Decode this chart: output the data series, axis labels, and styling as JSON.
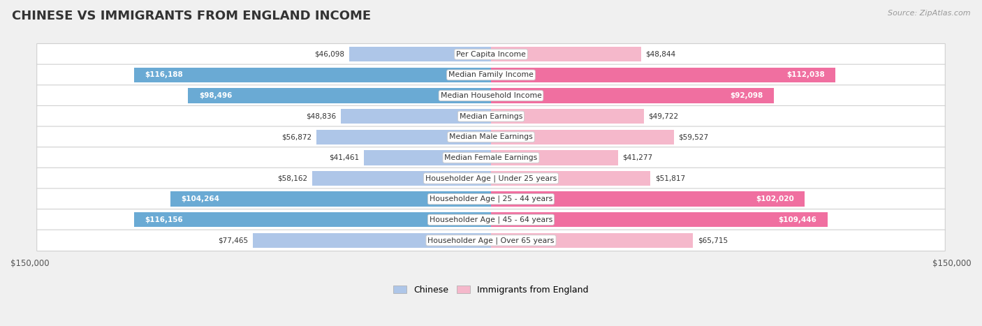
{
  "title": "CHINESE VS IMMIGRANTS FROM ENGLAND INCOME",
  "source": "Source: ZipAtlas.com",
  "categories": [
    "Per Capita Income",
    "Median Family Income",
    "Median Household Income",
    "Median Earnings",
    "Median Male Earnings",
    "Median Female Earnings",
    "Householder Age | Under 25 years",
    "Householder Age | 25 - 44 years",
    "Householder Age | 45 - 64 years",
    "Householder Age | Over 65 years"
  ],
  "chinese_values": [
    46098,
    116188,
    98496,
    48836,
    56872,
    41461,
    58162,
    104264,
    116156,
    77465
  ],
  "england_values": [
    48844,
    112038,
    92098,
    49722,
    59527,
    41277,
    51817,
    102020,
    109446,
    65715
  ],
  "chinese_color_light": "#aec6e8",
  "chinese_color_dark": "#6aaad4",
  "england_color_light": "#f5b8cb",
  "england_color_dark": "#f06fa0",
  "max_value": 150000,
  "background_color": "#f0f0f0",
  "row_bg_color": "#ffffff",
  "row_border_color": "#d0d0d0",
  "title_color": "#333333",
  "source_color": "#999999",
  "label_dark_color": "#333333",
  "label_white_color": "#ffffff",
  "threshold_dark": 90000,
  "title_fontsize": 13,
  "source_fontsize": 8,
  "cat_fontsize": 7.8,
  "val_fontsize": 7.5
}
